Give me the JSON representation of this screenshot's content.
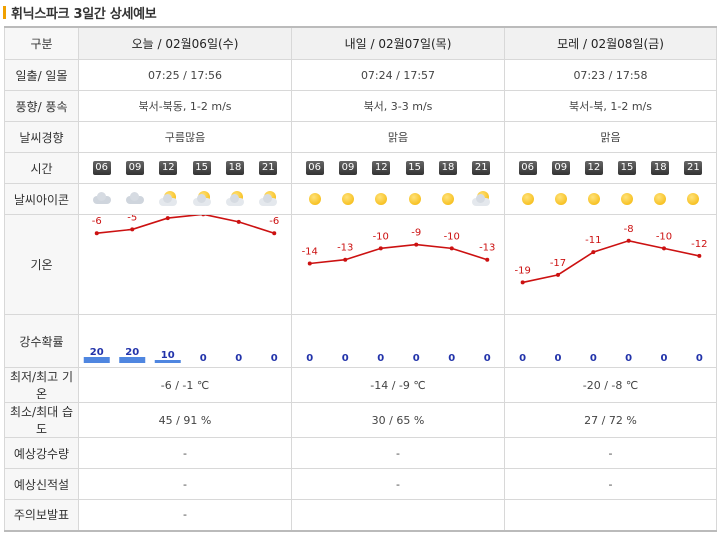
{
  "title": "휘닉스파크 3일간 상세예보",
  "header": {
    "label": "구분",
    "days": [
      "오늘 / 02월06일(수)",
      "내일 / 02월07일(목)",
      "모레 / 02월08일(금)"
    ]
  },
  "rows": {
    "sun": {
      "label": "일출/ 일몰",
      "values": [
        "07:25 / 17:56",
        "07:24 / 17:57",
        "07:23 / 17:58"
      ]
    },
    "wind": {
      "label": "풍향/ 풍속",
      "values": [
        "북서-북동, 1-2 m/s",
        "북서, 3-3 m/s",
        "북서-북, 1-2 m/s"
      ]
    },
    "trend": {
      "label": "날씨경향",
      "values": [
        "구름많음",
        "맑음",
        "맑음"
      ]
    },
    "time": {
      "label": "시간",
      "hours": [
        "06",
        "09",
        "12",
        "15",
        "18",
        "21"
      ]
    },
    "icon": {
      "label": "날씨아이콘",
      "days": [
        [
          "cloud-icon",
          "cloud-icon",
          "partly-cloudy-icon",
          "partly-cloudy-icon",
          "partly-cloudy-icon",
          "partly-cloudy-icon"
        ],
        [
          "sun-icon",
          "sun-icon",
          "sun-icon",
          "sun-icon",
          "sun-icon",
          "partly-cloudy-icon"
        ],
        [
          "sun-icon",
          "sun-icon",
          "sun-icon",
          "sun-icon",
          "sun-icon",
          "sun-icon"
        ]
      ]
    },
    "temp": {
      "label": "기온"
    },
    "rain": {
      "label": "강수확률"
    },
    "minmax": {
      "label": "최저/최고 기온",
      "values": [
        "-6 / -1 ℃",
        "-14 / -9 ℃",
        "-20 / -8 ℃"
      ]
    },
    "humidity": {
      "label": "최소/최대 습도",
      "values": [
        "45 / 91 %",
        "30 / 65 %",
        "27 / 72 %"
      ]
    },
    "precip": {
      "label": "예상강수량",
      "values": [
        "-",
        "-",
        "-"
      ]
    },
    "snow": {
      "label": "예상신적설",
      "values": [
        "-",
        "-",
        "-"
      ]
    },
    "warning": {
      "label": "주의보발표",
      "values": [
        "-",
        "",
        ""
      ]
    }
  },
  "colors": {
    "temp_line": "#cc1111",
    "rain_bar": "#4f86e0",
    "rain_text": "#2233aa"
  },
  "chart_data": [
    {
      "type": "line",
      "title": "기온",
      "x": [
        "06",
        "09",
        "12",
        "15",
        "18",
        "21"
      ],
      "series": [
        {
          "name": "오늘 / 02월06일(수)",
          "values": [
            -6,
            -5,
            -2,
            -1,
            -3,
            -6
          ]
        },
        {
          "name": "내일 / 02월07일(목)",
          "values": [
            -14,
            -13,
            -10,
            -9,
            -10,
            -13
          ]
        },
        {
          "name": "모레 / 02월08일(금)",
          "values": [
            -19,
            -17,
            -11,
            -8,
            -10,
            -12
          ]
        }
      ]
    },
    {
      "type": "bar",
      "title": "강수확률",
      "x": [
        "06",
        "09",
        "12",
        "15",
        "18",
        "21"
      ],
      "series": [
        {
          "name": "오늘 / 02월06일(수)",
          "values": [
            20,
            20,
            10,
            0,
            0,
            0
          ]
        },
        {
          "name": "내일 / 02월07일(목)",
          "values": [
            0,
            0,
            0,
            0,
            0,
            0
          ]
        },
        {
          "name": "모레 / 02월08일(금)",
          "values": [
            0,
            0,
            0,
            0,
            0,
            0
          ]
        }
      ]
    }
  ]
}
